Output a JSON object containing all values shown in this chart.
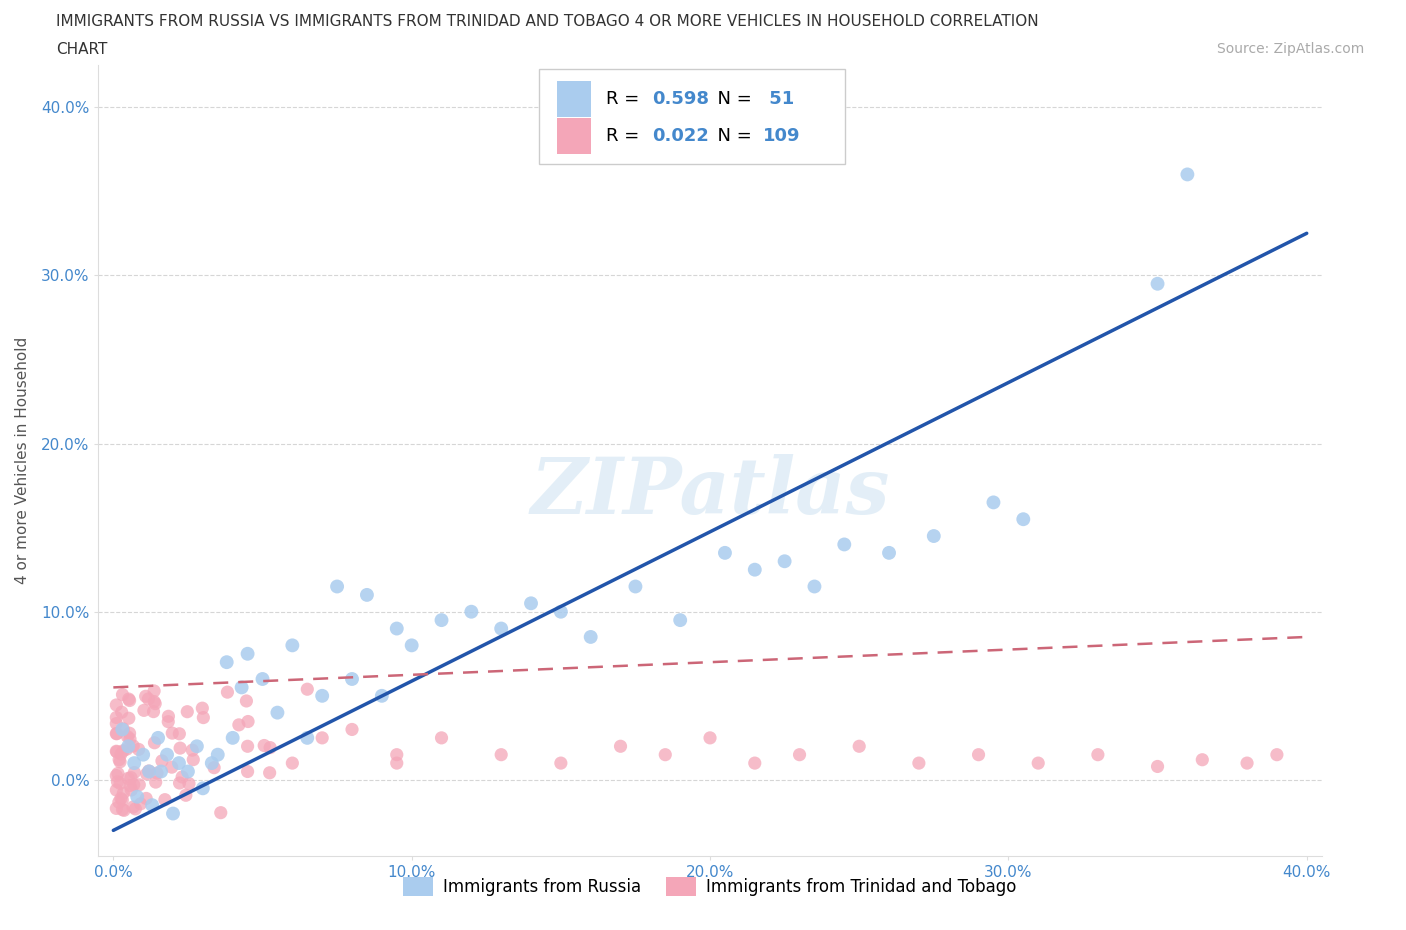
{
  "title_line1": "IMMIGRANTS FROM RUSSIA VS IMMIGRANTS FROM TRINIDAD AND TOBAGO 4 OR MORE VEHICLES IN HOUSEHOLD CORRELATION",
  "title_line2": "CHART",
  "source_text": "Source: ZipAtlas.com",
  "ylabel": "4 or more Vehicles in Household",
  "xlim": [
    -0.005,
    0.405
  ],
  "ylim": [
    -0.045,
    0.425
  ],
  "x_ticks": [
    0.0,
    0.1,
    0.2,
    0.3,
    0.4
  ],
  "y_ticks": [
    0.0,
    0.1,
    0.2,
    0.3,
    0.4
  ],
  "x_tick_labels": [
    "0.0%",
    "10.0%",
    "20.0%",
    "30.0%",
    "40.0%"
  ],
  "y_tick_labels": [
    "0.0%",
    "10.0%",
    "20.0%",
    "30.0%",
    "40.0%"
  ],
  "russia_color": "#aaccee",
  "trinidad_color": "#f4a6b8",
  "russia_line_color": "#2255aa",
  "trinidad_line_color": "#cc6677",
  "R_russia": 0.598,
  "N_russia": 51,
  "R_trinidad": 0.022,
  "N_trinidad": 109,
  "legend_russia": "Immigrants from Russia",
  "legend_trinidad": "Immigrants from Trinidad and Tobago",
  "watermark": "ZIPatlas",
  "background_color": "#ffffff",
  "grid_color": "#cccccc",
  "russia_line_x": [
    0.0,
    0.4
  ],
  "russia_line_y": [
    -0.03,
    0.325
  ],
  "trinidad_line_x": [
    0.0,
    0.4
  ],
  "trinidad_line_y": [
    0.055,
    0.085
  ]
}
